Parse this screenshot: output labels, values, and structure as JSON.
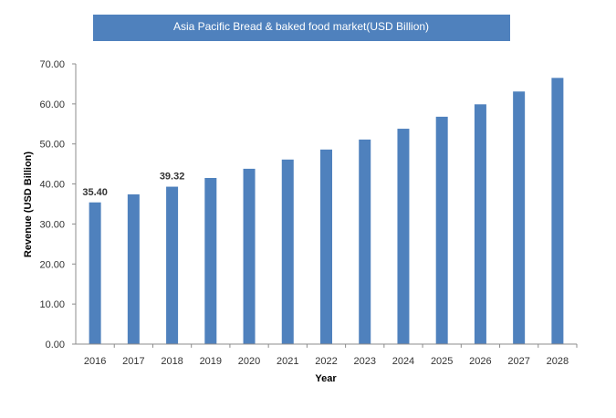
{
  "chart_data": {
    "type": "bar",
    "title": "Asia Pacific Bread & baked food market(USD Billion)",
    "xlabel": "Year",
    "ylabel": "Revenue (USD Billion)",
    "categories": [
      "2016",
      "2017",
      "2018",
      "2019",
      "2020",
      "2021",
      "2022",
      "2023",
      "2024",
      "2025",
      "2026",
      "2027",
      "2028"
    ],
    "values": [
      35.4,
      37.4,
      39.32,
      41.5,
      43.8,
      46.1,
      48.6,
      51.1,
      53.8,
      56.8,
      59.9,
      63.1,
      66.5
    ],
    "data_labels": [
      {
        "index": 0,
        "text": "35.40"
      },
      {
        "index": 2,
        "text": "39.32"
      }
    ],
    "yticks": [
      "0.00",
      "10.00",
      "20.00",
      "30.00",
      "40.00",
      "50.00",
      "60.00",
      "70.00"
    ],
    "ylim": [
      0,
      70
    ],
    "grid": false,
    "legend": "none",
    "bar_color": "#4F81BD",
    "title_bg_color": "#4F81BD"
  }
}
